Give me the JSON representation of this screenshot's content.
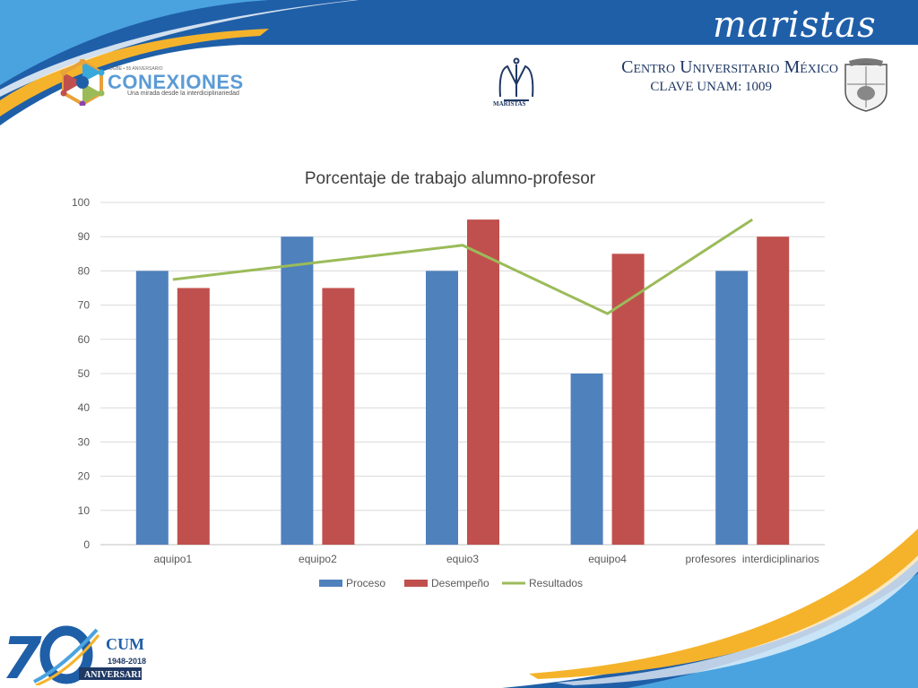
{
  "header": {
    "brand_script": "maristas",
    "institution_name": "Centro Universitario México",
    "clave": "CLAVE UNAM: 1009",
    "maristas_label": "MARISTAS",
    "conexiones": {
      "small_text": "DGBE • 55 ANIVERSARIO",
      "title": "CONEXIONES",
      "subtitle": "Una mirada desde la interdiciplinariedad"
    }
  },
  "footer": {
    "badge_code": "CUM",
    "years": "1948-2018",
    "label": "ANIVERSARIO"
  },
  "colors": {
    "proceso": "#4f81bd",
    "desempeno": "#c0504d",
    "resultados": "#9bbb59",
    "header_blue": "#1f5fa8",
    "accent_yellow": "#f5b32b"
  },
  "chart_data": {
    "type": "bar",
    "title": "Porcentaje de trabajo alumno-profesor",
    "categories": [
      "aquipo1",
      "equipo2",
      "equio3",
      "equipo4",
      "profesores  interdiciplinarios"
    ],
    "ylim": [
      0,
      100
    ],
    "yticks": [
      0,
      10,
      20,
      30,
      40,
      50,
      60,
      70,
      80,
      90,
      100
    ],
    "grid": true,
    "legend_position": "bottom",
    "series": [
      {
        "name": "Proceso",
        "type": "bar",
        "values": [
          80,
          90,
          80,
          50,
          80
        ]
      },
      {
        "name": "Desempeño",
        "type": "bar",
        "values": [
          75,
          75,
          95,
          85,
          90
        ]
      },
      {
        "name": "Resultados",
        "type": "line",
        "values": [
          77.5,
          82.5,
          87.5,
          67.5,
          95
        ]
      }
    ]
  }
}
